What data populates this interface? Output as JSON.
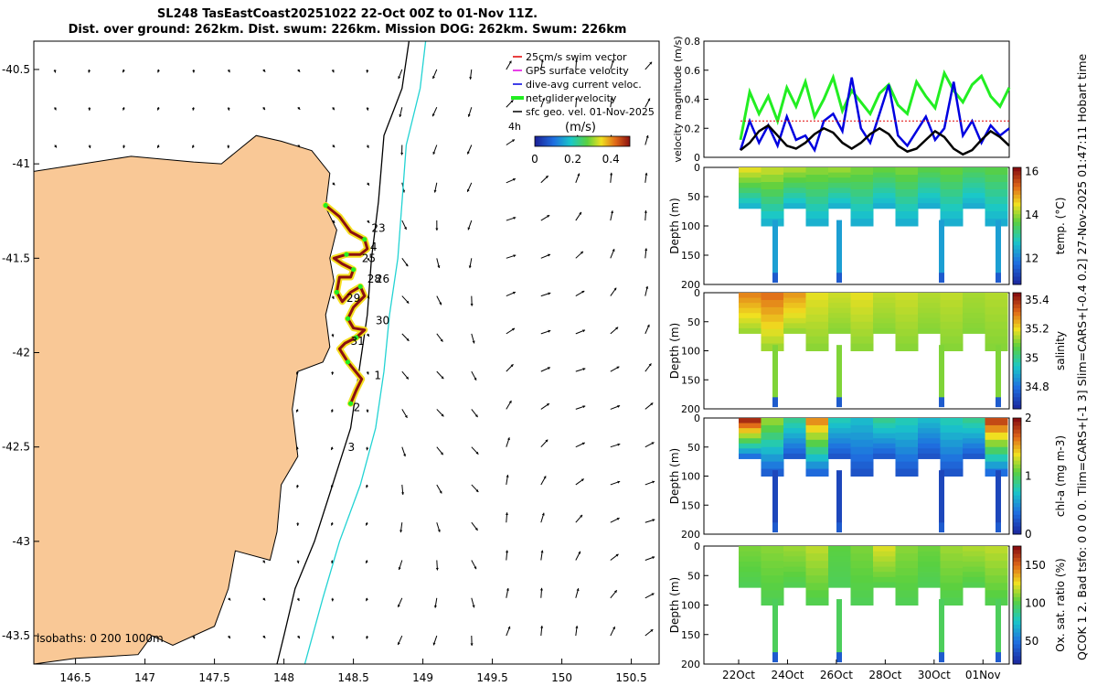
{
  "header": {
    "title_line1": "SL248 TasEastCoast20251022 22-Oct 00Z to 01-Nov 11Z.",
    "title_line2": "Dist. over ground: 262km. Dist. swum: 226km. Mission DOG: 262km. Swum: 226km"
  },
  "side_note": "QCOK 1  2. Bad tsfo: 0  0  0  0. Tlim=CARS+[-1 3] Slim=CARS+[-0.4 0.2] 27-Nov-2025 01:47:11 Hobart time",
  "colors": {
    "land": "#f9c896",
    "isobath_200": "#000000",
    "isobath_1000": "#22d3d3",
    "swim_vector": "#e00000",
    "gps_velocity": "#e000e0",
    "current_velocity": "#0000e0",
    "net_velocity": "#22ee22",
    "geo_velocity": "#000000"
  },
  "chart_data": [
    {
      "type": "map",
      "id": "glider_track_map",
      "xlim": [
        146.2,
        150.7
      ],
      "ylim": [
        -43.65,
        -40.35
      ],
      "x_ticks": [
        146.5,
        147,
        147.5,
        148,
        148.5,
        149,
        149.5,
        150,
        150.5
      ],
      "x_tick_labels": [
        "146.5",
        "147",
        "147.5",
        "148",
        "148.5",
        "149",
        "149.5",
        "150",
        "150.5"
      ],
      "y_ticks": [
        -40.5,
        -41,
        -41.5,
        -42,
        -42.5,
        -43,
        -43.5
      ],
      "y_tick_labels": [
        "-40.5",
        "-41",
        "-41.5",
        "-42",
        "-42.5",
        "-43",
        "-43.5"
      ],
      "legend": [
        {
          "label": "25cm/s swim vector",
          "color": "#e00000"
        },
        {
          "label": "GPS surface velocity",
          "color": "#e000e0"
        },
        {
          "label": "dive-avg current veloc.",
          "color": "#0000e0"
        },
        {
          "label": "net glider velocity",
          "color": "#22ee22"
        },
        {
          "label": "sfc geo. vel. 01-Nov-2025",
          "color": "#000000"
        }
      ],
      "legend_note": "4h",
      "colorbar": {
        "label": "(m/s)",
        "ticks": [
          0,
          0.2,
          0.4
        ],
        "tick_labels": [
          "0",
          "0.2",
          "0.4"
        ],
        "range": [
          0,
          0.5
        ]
      },
      "isobath_note": "isobaths: 0  200  1000m",
      "coast": [
        [
          146.2,
          -41.04
        ],
        [
          146.9,
          -40.96
        ],
        [
          147.35,
          -40.99
        ],
        [
          147.55,
          -41.0
        ],
        [
          147.8,
          -40.85
        ],
        [
          147.98,
          -40.88
        ],
        [
          148.2,
          -40.93
        ],
        [
          148.33,
          -41.05
        ],
        [
          148.3,
          -41.23
        ],
        [
          148.38,
          -41.35
        ],
        [
          148.33,
          -41.5
        ],
        [
          148.36,
          -41.62
        ],
        [
          148.3,
          -41.8
        ],
        [
          148.33,
          -41.97
        ],
        [
          148.28,
          -42.05
        ],
        [
          148.1,
          -42.1
        ],
        [
          148.06,
          -42.3
        ],
        [
          148.1,
          -42.55
        ],
        [
          147.98,
          -42.7
        ],
        [
          147.95,
          -42.95
        ],
        [
          147.9,
          -43.1
        ],
        [
          147.65,
          -43.05
        ],
        [
          147.6,
          -43.25
        ],
        [
          147.5,
          -43.45
        ],
        [
          147.2,
          -43.55
        ],
        [
          147.05,
          -43.5
        ],
        [
          146.95,
          -43.6
        ],
        [
          146.5,
          -43.62
        ],
        [
          146.2,
          -43.65
        ]
      ],
      "isobath_200": [
        [
          148.9,
          -40.35
        ],
        [
          148.85,
          -40.6
        ],
        [
          148.72,
          -40.85
        ],
        [
          148.68,
          -41.2
        ],
        [
          148.63,
          -41.5
        ],
        [
          148.6,
          -41.8
        ],
        [
          148.54,
          -42.1
        ],
        [
          148.48,
          -42.4
        ],
        [
          148.35,
          -42.7
        ],
        [
          148.22,
          -43.0
        ],
        [
          148.08,
          -43.25
        ],
        [
          148.0,
          -43.5
        ],
        [
          147.95,
          -43.65
        ]
      ],
      "isobath_1000": [
        [
          149.02,
          -40.35
        ],
        [
          148.98,
          -40.6
        ],
        [
          148.88,
          -40.9
        ],
        [
          148.85,
          -41.2
        ],
        [
          148.82,
          -41.5
        ],
        [
          148.76,
          -41.8
        ],
        [
          148.72,
          -42.1
        ],
        [
          148.66,
          -42.4
        ],
        [
          148.55,
          -42.7
        ],
        [
          148.4,
          -43.0
        ],
        [
          148.28,
          -43.3
        ],
        [
          148.15,
          -43.65
        ]
      ],
      "track": [
        [
          148.3,
          -41.22
        ],
        [
          148.4,
          -41.28
        ],
        [
          148.48,
          -41.36
        ],
        [
          148.58,
          -41.4
        ],
        [
          148.6,
          -41.45
        ],
        [
          148.55,
          -41.48
        ],
        [
          148.45,
          -41.48
        ],
        [
          148.36,
          -41.5
        ],
        [
          148.42,
          -41.53
        ],
        [
          148.5,
          -41.56
        ],
        [
          148.48,
          -41.6
        ],
        [
          148.4,
          -41.6
        ],
        [
          148.38,
          -41.68
        ],
        [
          148.42,
          -41.73
        ],
        [
          148.48,
          -41.68
        ],
        [
          148.55,
          -41.65
        ],
        [
          148.58,
          -41.7
        ],
        [
          148.5,
          -41.76
        ],
        [
          148.46,
          -41.82
        ],
        [
          148.5,
          -41.87
        ],
        [
          148.58,
          -41.88
        ],
        [
          148.52,
          -41.92
        ],
        [
          148.44,
          -41.95
        ],
        [
          148.4,
          -41.98
        ],
        [
          148.46,
          -42.05
        ],
        [
          148.56,
          -42.14
        ],
        [
          148.52,
          -42.2
        ],
        [
          148.48,
          -42.27
        ]
      ],
      "day_labels": [
        {
          "text": "23",
          "lon": 148.63,
          "lat": -41.36
        },
        {
          "text": "4",
          "lon": 148.62,
          "lat": -41.46
        },
        {
          "text": "25",
          "lon": 148.56,
          "lat": -41.52
        },
        {
          "text": "28",
          "lon": 148.6,
          "lat": -41.63
        },
        {
          "text": "26",
          "lon": 148.66,
          "lat": -41.63
        },
        {
          "text": "29",
          "lon": 148.45,
          "lat": -41.73
        },
        {
          "text": "30",
          "lon": 148.66,
          "lat": -41.85
        },
        {
          "text": "31",
          "lon": 148.48,
          "lat": -41.96
        },
        {
          "text": "1",
          "lon": 148.65,
          "lat": -42.14
        },
        {
          "text": "2",
          "lon": 148.5,
          "lat": -42.31
        },
        {
          "text": "3",
          "lon": 148.46,
          "lat": -42.52
        }
      ]
    },
    {
      "type": "line",
      "id": "velocity_panel",
      "ylabel": "velocity magnitude (m/s)",
      "ylim": [
        0,
        0.8
      ],
      "y_ticks": [
        0,
        0.2,
        0.4,
        0.6,
        0.8
      ],
      "y_tick_labels": [
        "0",
        "0.2",
        "0.4",
        "0.6",
        "0.8"
      ],
      "xlim": [
        0,
        11
      ],
      "series": [
        {
          "name": "net glider velocity",
          "color": "#22ee22",
          "values": [
            0.12,
            0.45,
            0.3,
            0.42,
            0.25,
            0.48,
            0.35,
            0.52,
            0.28,
            0.4,
            0.55,
            0.32,
            0.46,
            0.38,
            0.3,
            0.44,
            0.5,
            0.36,
            0.3,
            0.52,
            0.42,
            0.34,
            0.58,
            0.46,
            0.38,
            0.5,
            0.56,
            0.42,
            0.35,
            0.48
          ]
        },
        {
          "name": "dive-avg current veloc.",
          "color": "#0000e0",
          "values": [
            0.05,
            0.25,
            0.1,
            0.22,
            0.08,
            0.28,
            0.12,
            0.15,
            0.05,
            0.25,
            0.3,
            0.18,
            0.55,
            0.2,
            0.1,
            0.3,
            0.5,
            0.15,
            0.08,
            0.18,
            0.28,
            0.12,
            0.2,
            0.52,
            0.15,
            0.25,
            0.1,
            0.22,
            0.15,
            0.2
          ]
        },
        {
          "name": "sfc geo. vel.",
          "color": "#000000",
          "values": [
            0.05,
            0.1,
            0.18,
            0.22,
            0.15,
            0.08,
            0.06,
            0.1,
            0.16,
            0.2,
            0.17,
            0.1,
            0.06,
            0.1,
            0.16,
            0.2,
            0.16,
            0.08,
            0.04,
            0.06,
            0.12,
            0.18,
            0.14,
            0.06,
            0.02,
            0.05,
            0.12,
            0.18,
            0.14,
            0.08
          ]
        },
        {
          "name": "25cm/s swim vector",
          "color": "#e00000",
          "values": [
            0.25,
            0.25,
            0.25,
            0.25,
            0.25,
            0.25,
            0.25,
            0.25,
            0.25,
            0.25,
            0.25,
            0.25,
            0.25,
            0.25,
            0.25,
            0.25,
            0.25,
            0.25,
            0.25,
            0.25,
            0.25,
            0.25,
            0.25,
            0.25,
            0.25,
            0.25,
            0.25,
            0.25,
            0.25,
            0.25
          ]
        }
      ]
    },
    {
      "type": "heatmap",
      "id": "temp_panel",
      "ylabel": "Depth (m)",
      "ylim": [
        200,
        0
      ],
      "y_ticks": [
        0,
        50,
        100,
        150,
        200
      ],
      "y_tick_labels": [
        "0",
        "50",
        "100",
        "150",
        "200"
      ],
      "colorbar_label": "temp. (°C)",
      "crange": [
        10.8,
        16.2
      ],
      "colorbar_ticks": [
        12,
        14,
        16
      ],
      "colorbar_tick_labels": [
        "12",
        "14",
        "16"
      ],
      "surface_values": [
        14.5,
        14.3,
        14.2,
        14.0,
        14.1,
        13.9,
        13.8,
        13.9,
        13.7,
        13.8,
        13.6,
        13.7
      ],
      "bottom_value": 12.4
    },
    {
      "type": "heatmap",
      "id": "salinity_panel",
      "ylabel": "Depth (m)",
      "ylim": [
        200,
        0
      ],
      "y_ticks": [
        0,
        50,
        100,
        150,
        200
      ],
      "y_tick_labels": [
        "0",
        "50",
        "100",
        "150",
        "200"
      ],
      "colorbar_label": "salinity",
      "crange": [
        34.65,
        35.45
      ],
      "colorbar_ticks": [
        34.8,
        35,
        35.2,
        35.4
      ],
      "colorbar_tick_labels": [
        "34.8",
        "35",
        "35.2",
        "35.4"
      ],
      "surface_values": [
        35.3,
        35.32,
        35.28,
        35.2,
        35.18,
        35.2,
        35.17,
        35.18,
        35.16,
        35.17,
        35.15,
        35.16
      ],
      "bottom_value": 35.12
    },
    {
      "type": "heatmap",
      "id": "chla_panel",
      "ylabel": "Depth (m)",
      "ylim": [
        200,
        0
      ],
      "y_ticks": [
        0,
        50,
        100,
        150,
        200
      ],
      "y_tick_labels": [
        "0",
        "50",
        "100",
        "150",
        "200"
      ],
      "colorbar_label": "chl-a (mg m-3)",
      "crange": [
        0,
        2
      ],
      "colorbar_ticks": [
        0,
        1,
        2
      ],
      "colorbar_tick_labels": [
        "0",
        "1",
        "2"
      ],
      "surface_values": [
        1.9,
        1.2,
        0.9,
        1.6,
        0.8,
        0.7,
        0.9,
        0.8,
        0.7,
        0.8,
        0.9,
        1.8
      ],
      "bottom_value": 0.2
    },
    {
      "type": "heatmap",
      "id": "oxygen_panel",
      "ylabel": "Depth (m)",
      "ylim": [
        200,
        0
      ],
      "y_ticks": [
        0,
        50,
        100,
        150,
        200
      ],
      "y_tick_labels": [
        "0",
        "50",
        "100",
        "150",
        "200"
      ],
      "x_tick_labels": [
        "22Oct",
        "24Oct",
        "26Oct",
        "28Oct",
        "30Oct",
        "01Nov"
      ],
      "x_ticks": [
        0,
        2,
        4,
        6,
        8,
        10
      ],
      "colorbar_label": "Ox. sat. ratio (%)",
      "crange": [
        20,
        175
      ],
      "colorbar_ticks": [
        50,
        100,
        150
      ],
      "colorbar_tick_labels": [
        "50",
        "100",
        "150"
      ],
      "surface_values": [
        110,
        112,
        115,
        120,
        105,
        110,
        125,
        112,
        108,
        115,
        118,
        120
      ],
      "bottom_value": 100
    }
  ]
}
